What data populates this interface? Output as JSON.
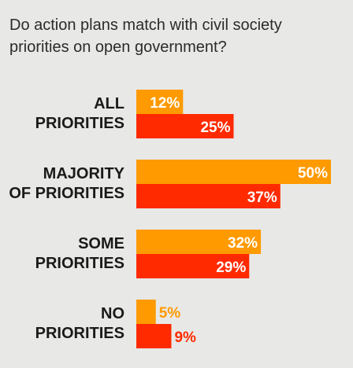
{
  "chart_data": {
    "type": "bar",
    "title": "Do action plans match with civil society priorities on open government?",
    "categories": [
      [
        "ALL",
        "PRIORITIES"
      ],
      [
        "MAJORITY",
        "OF PRIORITIES"
      ],
      [
        "SOME",
        "PRIORITIES"
      ],
      [
        "NO",
        "PRIORITIES"
      ]
    ],
    "series": [
      {
        "values": [
          12,
          50,
          32,
          5
        ],
        "labels": [
          "12%",
          "50%",
          "32%",
          "5%"
        ],
        "color": "#ff9a00"
      },
      {
        "values": [
          25,
          37,
          29,
          9
        ],
        "labels": [
          "25%",
          "37%",
          "29%",
          "9%"
        ],
        "color": "#ff2a00"
      }
    ],
    "value_label_color_inside": "#ffffff",
    "xlim": [
      0,
      50
    ],
    "grid": false
  }
}
